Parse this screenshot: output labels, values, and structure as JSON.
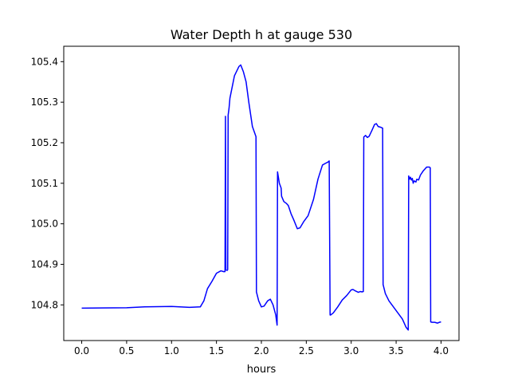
{
  "chart_data": {
    "type": "line",
    "title": "Water Depth h at gauge 530",
    "xlabel": "hours",
    "ylabel": "",
    "xlim": [
      -0.2,
      4.2
    ],
    "ylim": [
      104.712,
      105.438
    ],
    "x_ticks": [
      0.0,
      0.5,
      1.0,
      1.5,
      2.0,
      2.5,
      3.0,
      3.5,
      4.0
    ],
    "x_tick_labels": [
      "0.0",
      "0.5",
      "1.0",
      "1.5",
      "2.0",
      "2.5",
      "3.0",
      "3.5",
      "4.0"
    ],
    "y_ticks": [
      104.8,
      104.9,
      105.0,
      105.1,
      105.2,
      105.3,
      105.4
    ],
    "y_tick_labels": [
      "104.8",
      "104.9",
      "105.0",
      "105.1",
      "105.2",
      "105.3",
      "105.4"
    ],
    "grid": false,
    "legend": "none",
    "series": [
      {
        "color": "#0000ff",
        "x": [
          0.0,
          0.5,
          0.7,
          1.0,
          1.2,
          1.32,
          1.36,
          1.4,
          1.45,
          1.5,
          1.55,
          1.58,
          1.595,
          1.6,
          1.605,
          1.62,
          1.625,
          1.63,
          1.64,
          1.65,
          1.7,
          1.75,
          1.77,
          1.8,
          1.83,
          1.86,
          1.9,
          1.94,
          1.945,
          1.97,
          2.0,
          2.03,
          2.07,
          2.1,
          2.13,
          2.16,
          2.175,
          2.18,
          2.2,
          2.22,
          2.225,
          2.25,
          2.28,
          2.3,
          2.33,
          2.36,
          2.4,
          2.43,
          2.47,
          2.52,
          2.58,
          2.63,
          2.68,
          2.72,
          2.74,
          2.755,
          2.765,
          2.77,
          2.8,
          2.85,
          2.9,
          2.95,
          3.0,
          3.02,
          3.05,
          3.08,
          3.1,
          3.12,
          3.135,
          3.14,
          3.16,
          3.18,
          3.2,
          3.23,
          3.26,
          3.28,
          3.3,
          3.33,
          3.35,
          3.355,
          3.38,
          3.42,
          3.47,
          3.52,
          3.57,
          3.61,
          3.635,
          3.64,
          3.65,
          3.66,
          3.67,
          3.68,
          3.69,
          3.7,
          3.72,
          3.73,
          3.75,
          3.77,
          3.8,
          3.84,
          3.87,
          3.88,
          3.885,
          3.9,
          3.93,
          3.96,
          3.98,
          4.0
        ],
        "y": [
          104.792,
          104.793,
          104.795,
          104.796,
          104.794,
          104.795,
          104.81,
          104.84,
          104.858,
          104.878,
          104.884,
          104.882,
          104.882,
          105.265,
          104.886,
          104.885,
          104.887,
          105.268,
          105.285,
          105.31,
          105.365,
          105.388,
          105.392,
          105.375,
          105.35,
          105.3,
          105.24,
          105.215,
          104.832,
          104.81,
          104.795,
          104.797,
          104.81,
          104.814,
          104.8,
          104.775,
          104.75,
          105.128,
          105.1,
          105.088,
          105.068,
          105.055,
          105.05,
          105.045,
          105.025,
          105.01,
          104.988,
          104.99,
          105.005,
          105.02,
          105.06,
          105.11,
          105.145,
          105.15,
          105.152,
          105.155,
          104.775,
          104.775,
          104.78,
          104.795,
          104.812,
          104.823,
          104.837,
          104.838,
          104.834,
          104.831,
          104.833,
          104.832,
          104.833,
          105.214,
          105.218,
          105.213,
          105.216,
          105.23,
          105.245,
          105.247,
          105.24,
          105.238,
          105.236,
          104.85,
          104.828,
          104.81,
          104.795,
          104.78,
          104.765,
          104.745,
          104.738,
          105.118,
          105.11,
          105.115,
          105.108,
          105.112,
          105.1,
          105.106,
          105.103,
          105.11,
          105.108,
          105.12,
          105.13,
          105.14,
          105.14,
          105.138,
          104.758,
          104.757,
          104.757,
          104.755,
          104.757,
          104.758
        ]
      }
    ]
  }
}
